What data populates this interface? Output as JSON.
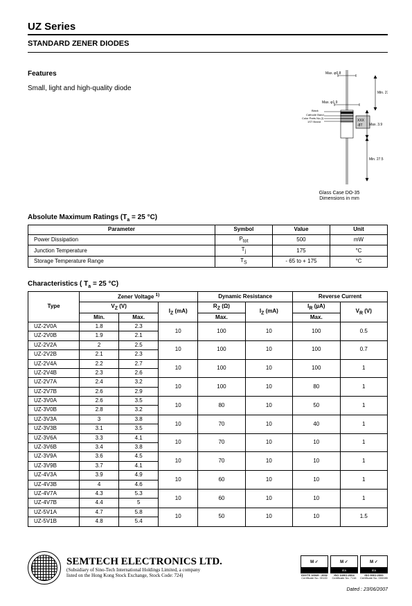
{
  "title": "UZ Series",
  "subtitle": "STANDARD ZENER DIODES",
  "features": {
    "heading": "Features",
    "text": "Small, light and high-quality diode"
  },
  "diagram": {
    "labels": {
      "max_phi08": "Max. φ0.8",
      "max_phi19": "Max. φ1.9",
      "min_275_a": "Min. 27.5",
      "max_39": "Max. 3.9",
      "min_275_b": "Min. 27.5",
      "black": "Black",
      "cathode": "Cathode Band",
      "color1": "Color Parts No.(I)",
      "color2": "1ST Brand"
    },
    "chip_text_top": "XXX",
    "chip_text_bot": "-8T",
    "caption_l1": "Glass Case DO-35",
    "caption_l2": "Dimensions in mm"
  },
  "amr": {
    "heading_html": "Absolute Maximum Ratings (T<sub>a</sub> = 25 °C)",
    "headers": [
      "Parameter",
      "Symbol",
      "Value",
      "Unit"
    ],
    "rows": [
      {
        "param": "Power Dissipation",
        "symbol_html": "P<sub>tot</sub>",
        "value": "500",
        "unit": "mW"
      },
      {
        "param": "Junction Temperature",
        "symbol_html": "T<sub>j</sub>",
        "value": "175",
        "unit": "°C"
      },
      {
        "param": "Storage Temperature Range",
        "symbol_html": "T<sub>S</sub>",
        "value": "- 65 to + 175",
        "unit": "°C"
      }
    ],
    "col_widths": [
      "52%",
      "16%",
      "16%",
      "16%"
    ]
  },
  "char": {
    "heading_html": "Characteristics ( T<sub>a</sub> = 25 °C)",
    "top_headers": {
      "type": "Type",
      "zener_html": "Zener Voltage <sup>1)</sup>",
      "dynamic": "Dynamic Resistance",
      "reverse": "Reverse Current"
    },
    "sub_headers": {
      "vz_html": "V<sub>Z</sub> (V)",
      "iz_html": "I<sub>Z</sub> (mA)",
      "rz_html": "R<sub>Z</sub> (Ω)",
      "ir_html": "I<sub>R</sub> (µA)",
      "min": "Min.",
      "max": "Max.",
      "iz2_html": "I<sub>Z</sub> (mA)",
      "vr_html": "V<sub>R</sub> (V)"
    },
    "groups": [
      {
        "rows": [
          {
            "type": "UZ-2V0A",
            "min": "1.8",
            "max": "2.3"
          },
          {
            "type": "UZ-2V0B",
            "min": "1.9",
            "max": "2.1"
          }
        ],
        "iz": "10",
        "rz": "100",
        "iz2": "10",
        "ir": "100",
        "vr": "0.5"
      },
      {
        "rows": [
          {
            "type": "UZ-2V2A",
            "min": "2",
            "max": "2.5"
          },
          {
            "type": "UZ-2V2B",
            "min": "2.1",
            "max": "2.3"
          }
        ],
        "iz": "10",
        "rz": "100",
        "iz2": "10",
        "ir": "100",
        "vr": "0.7"
      },
      {
        "rows": [
          {
            "type": "UZ-2V4A",
            "min": "2.2",
            "max": "2.7"
          },
          {
            "type": "UZ-2V4B",
            "min": "2.3",
            "max": "2.6"
          }
        ],
        "iz": "10",
        "rz": "100",
        "iz2": "10",
        "ir": "100",
        "vr": "1"
      },
      {
        "rows": [
          {
            "type": "UZ-2V7A",
            "min": "2.4",
            "max": "3.2"
          },
          {
            "type": "UZ-2V7B",
            "min": "2.6",
            "max": "2.9"
          }
        ],
        "iz": "10",
        "rz": "100",
        "iz2": "10",
        "ir": "80",
        "vr": "1"
      },
      {
        "rows": [
          {
            "type": "UZ-3V0A",
            "min": "2.6",
            "max": "3.5"
          },
          {
            "type": "UZ-3V0B",
            "min": "2.8",
            "max": "3.2"
          }
        ],
        "iz": "10",
        "rz": "80",
        "iz2": "10",
        "ir": "50",
        "vr": "1"
      },
      {
        "rows": [
          {
            "type": "UZ-3V3A",
            "min": "3",
            "max": "3.8"
          },
          {
            "type": "UZ-3V3B",
            "min": "3.1",
            "max": "3.5"
          }
        ],
        "iz": "10",
        "rz": "70",
        "iz2": "10",
        "ir": "40",
        "vr": "1"
      },
      {
        "rows": [
          {
            "type": "UZ-3V6A",
            "min": "3.3",
            "max": "4.1"
          },
          {
            "type": "UZ-3V6B",
            "min": "3.4",
            "max": "3.8"
          }
        ],
        "iz": "10",
        "rz": "70",
        "iz2": "10",
        "ir": "10",
        "vr": "1"
      },
      {
        "rows": [
          {
            "type": "UZ-3V9A",
            "min": "3.6",
            "max": "4.5"
          },
          {
            "type": "UZ-3V9B",
            "min": "3.7",
            "max": "4.1"
          }
        ],
        "iz": "10",
        "rz": "70",
        "iz2": "10",
        "ir": "10",
        "vr": "1"
      },
      {
        "rows": [
          {
            "type": "UZ-4V3A",
            "min": "3.9",
            "max": "4.9"
          },
          {
            "type": "UZ-4V3B",
            "min": "4",
            "max": "4.6"
          }
        ],
        "iz": "10",
        "rz": "60",
        "iz2": "10",
        "ir": "10",
        "vr": "1"
      },
      {
        "rows": [
          {
            "type": "UZ-4V7A",
            "min": "4.3",
            "max": "5.3"
          },
          {
            "type": "UZ-4V7B",
            "min": "4.4",
            "max": "5"
          }
        ],
        "iz": "10",
        "rz": "60",
        "iz2": "10",
        "ir": "10",
        "vr": "1"
      },
      {
        "rows": [
          {
            "type": "UZ-5V1A",
            "min": "4.7",
            "max": "5.8"
          },
          {
            "type": "UZ-5V1B",
            "min": "4.8",
            "max": "5.4"
          }
        ],
        "iz": "10",
        "rz": "50",
        "iz2": "10",
        "ir": "10",
        "vr": "1.5"
      }
    ],
    "col_widths": [
      "13%",
      "10%",
      "10%",
      "10%",
      "12%",
      "12%",
      "12%",
      "12%"
    ]
  },
  "footer": {
    "company": "SEMTECH ELECTRONICS LTD.",
    "sub_l1": "(Subsidiary of Sino-Tech International Holdings Limited, a company",
    "sub_l2": "listed on the Hong Kong Stock Exchange, Stock Code: 724)",
    "certs": [
      {
        "top": "M ✓",
        "bot": "",
        "cap1": "ISO/TS 16949 : 2002",
        "cap2": "Certificate No. 00100"
      },
      {
        "top": "M ✓",
        "bot": "IEA",
        "cap1": "ISO 14001:2004",
        "cap2": "Certificate No. 7116"
      },
      {
        "top": "M ✓",
        "bot": "IEA",
        "cap1": "ISO 9001:2000",
        "cap2": "Certificate No. 000085"
      }
    ],
    "dated": "Dated : 23/06/2007"
  },
  "colors": {
    "text": "#000000",
    "bg": "#ffffff",
    "border": "#000000"
  }
}
